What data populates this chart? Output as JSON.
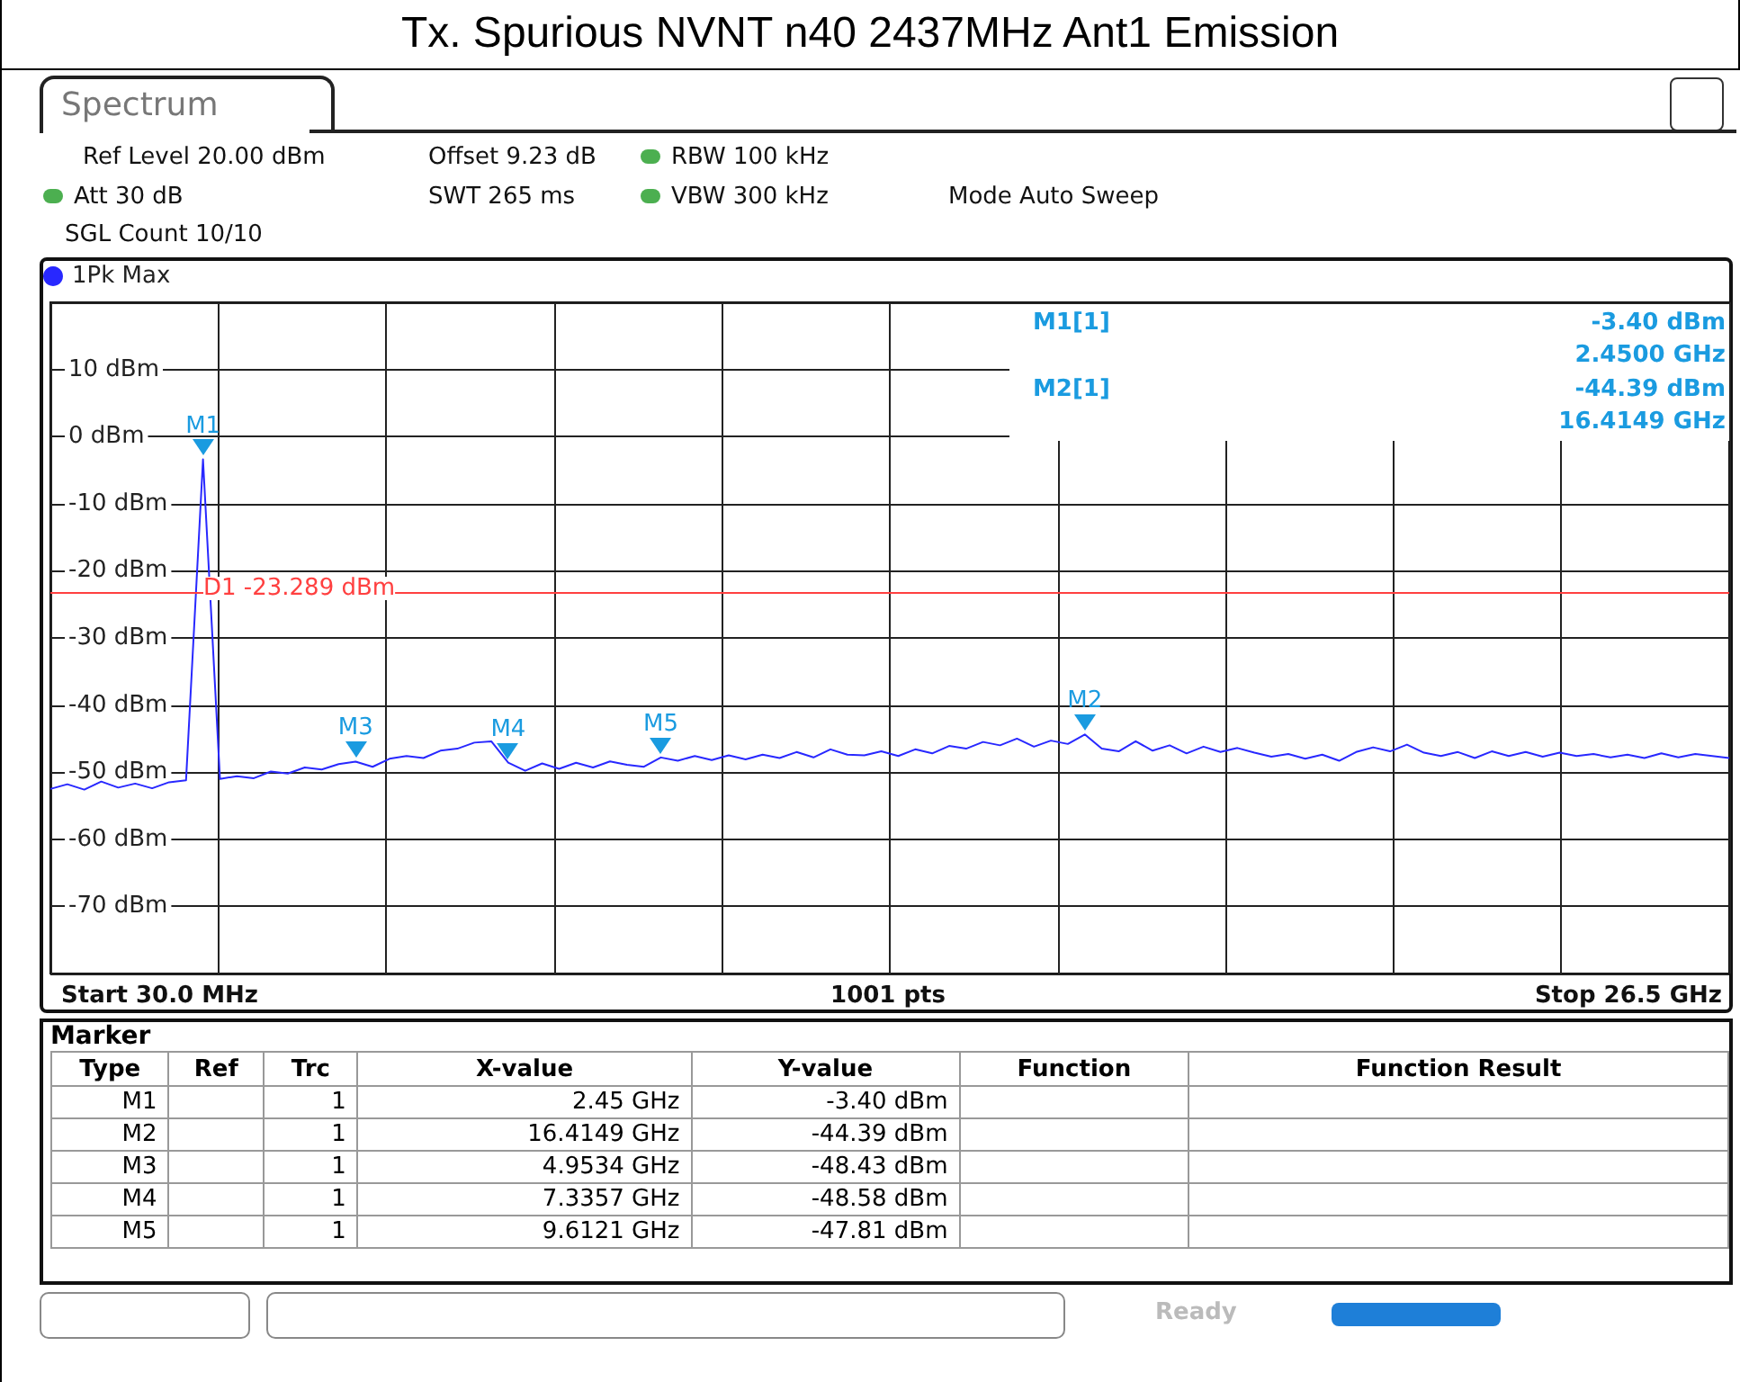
{
  "chart_data": {
    "type": "line",
    "title": "Tx. Spurious NVNT n40 2437MHz Ant1 Emission",
    "categories": [
      null,
      null,
      null,
      null,
      null,
      null,
      null,
      null,
      null,
      null,
      null,
      null,
      null,
      null,
      null,
      null,
      null,
      null,
      null,
      null,
      null,
      null,
      null,
      null,
      null,
      null,
      null,
      null,
      null,
      null,
      null,
      null,
      null,
      null,
      null,
      null,
      null,
      null,
      null,
      null,
      null,
      null,
      null,
      null,
      null,
      null,
      null,
      null,
      null,
      null,
      null,
      null,
      null,
      null,
      null,
      null,
      null,
      null,
      null,
      null,
      null,
      null,
      null,
      null,
      null,
      null,
      null,
      null,
      null,
      null,
      null,
      null,
      null,
      null,
      null,
      null,
      null,
      null,
      null,
      null,
      null,
      null,
      null,
      null,
      null,
      null,
      null,
      null,
      null,
      null,
      null,
      null,
      null,
      null,
      null,
      null,
      null,
      null,
      null,
      null
    ],
    "ylim": [
      -80,
      20
    ],
    "yticks": [
      {
        "value": -80,
        "label": null
      },
      {
        "value": -70,
        "label": "-70 dBm"
      },
      {
        "value": -60,
        "label": "-60 dBm"
      },
      {
        "value": -50,
        "label": "-50 dBm"
      },
      {
        "value": -40,
        "label": "-40 dBm"
      },
      {
        "value": -30,
        "label": "-30 dBm"
      },
      {
        "value": -20,
        "label": "-20 dBm"
      },
      {
        "value": -10,
        "label": "-10 dBm"
      },
      {
        "value": 0,
        "label": "0 dBm"
      },
      {
        "value": 10,
        "label": "10 dBm"
      },
      {
        "value": 20,
        "label": null
      }
    ],
    "tick_labels": "y",
    "grid": true,
    "legend": "top left",
    "line_style": "solid",
    "ref_lines": [
      {
        "axis": "y",
        "value": -23.289,
        "label": "D1 -23.289 dBm",
        "color": "#ff4040"
      }
    ],
    "series": [
      {
        "name": "1Pk Max",
        "color": "#2828ff",
        "values": [
          -52.5,
          -51.8,
          -52.6,
          -51.4,
          -52.3,
          -51.7,
          -52.4,
          -51.5,
          -51.2,
          -3.4,
          -51.0,
          -50.6,
          -50.9,
          -49.9,
          -50.2,
          -49.3,
          -49.6,
          -48.8,
          -48.43,
          -49.2,
          -48.0,
          -47.6,
          -47.9,
          -46.8,
          -46.5,
          -45.6,
          -45.4,
          -48.58,
          -49.8,
          -48.7,
          -49.5,
          -48.6,
          -49.3,
          -48.4,
          -48.9,
          -49.2,
          -47.81,
          -48.3,
          -47.6,
          -48.2,
          -47.5,
          -48.1,
          -47.4,
          -47.9,
          -47.0,
          -47.8,
          -46.6,
          -47.4,
          -47.5,
          -46.9,
          -47.6,
          -46.6,
          -47.2,
          -46.1,
          -46.5,
          -45.5,
          -46.0,
          -45.0,
          -46.2,
          -45.3,
          -45.8,
          -44.39,
          -46.5,
          -46.9,
          -45.4,
          -46.8,
          -46.0,
          -47.2,
          -46.2,
          -47.0,
          -46.4,
          -47.1,
          -47.7,
          -47.3,
          -48.0,
          -47.4,
          -48.3,
          -47.0,
          -46.3,
          -46.9,
          -45.9,
          -47.1,
          -47.6,
          -47.0,
          -47.9,
          -46.9,
          -47.6,
          -47.0,
          -47.7,
          -47.1,
          -47.6,
          -47.3,
          -47.8,
          -47.4,
          -47.9,
          -47.2,
          -47.8,
          -47.3,
          -47.6,
          -47.9
        ],
        "value_labels": [
          null,
          null,
          null,
          null,
          null,
          null,
          null,
          null,
          null,
          "M1",
          null,
          null,
          null,
          null,
          null,
          null,
          null,
          null,
          "M3",
          null,
          null,
          null,
          null,
          null,
          null,
          null,
          null,
          "M4",
          null,
          null,
          null,
          null,
          null,
          null,
          null,
          null,
          "M5",
          null,
          null,
          null,
          null,
          null,
          null,
          null,
          null,
          null,
          null,
          null,
          null,
          null,
          null,
          null,
          null,
          null,
          null,
          null,
          null,
          null,
          null,
          null,
          null,
          "M2",
          null,
          null,
          null,
          null,
          null,
          null,
          null,
          null,
          null,
          null,
          null,
          null,
          null,
          null,
          null,
          null,
          null,
          null,
          null,
          null,
          null,
          null,
          null,
          null,
          null,
          null,
          null,
          null,
          null,
          null,
          null,
          null,
          null,
          null,
          null,
          null,
          null,
          null
        ]
      }
    ],
    "annotations": [
      "Spectrum",
      "Ref Level 20.00 dBm",
      "Offset 9.23 dB",
      "RBW 100 kHz",
      "Att 30 dB",
      "SWT 265 ms",
      "VBW 300 kHz",
      "Mode Auto Sweep",
      "SGL Count 10/10",
      "M1[1]",
      "-3.40 dBm",
      "2.4500 GHz",
      "M2[1]",
      "-44.39 dBm",
      "16.4149 GHz",
      "Start 30.0 MHz",
      "1001 pts",
      "Stop 26.5 GHz",
      "Marker",
      "Type",
      "Ref",
      "Trc",
      "X-value",
      "Y-value",
      "Function",
      "Function Result",
      "M1",
      "1",
      "2.45 GHz",
      "-3.40 dBm",
      "M2",
      "1",
      "16.4149 GHz",
      "-44.39 dBm",
      "M3",
      "1",
      "4.9534 GHz",
      "-48.43 dBm",
      "M4",
      "1",
      "7.3357 GHz",
      "-48.58 dBm",
      "M5",
      "1",
      "9.6121 GHz",
      "-47.81 dBm",
      "Ready"
    ]
  }
}
